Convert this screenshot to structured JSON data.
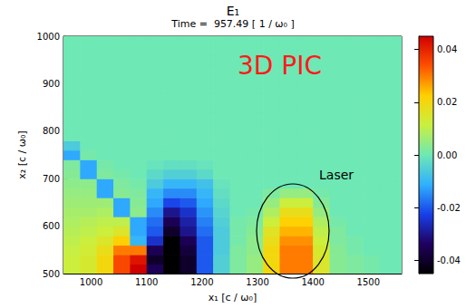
{
  "chart_data": {
    "type": "heatmap",
    "title": "E₁",
    "subtitle": "Time =  957.49 [ 1 / ω₀ ]",
    "x_label": "x₁ [c / ω₀]",
    "y_label": "x₂ [c / ω₀]",
    "xlim": [
      950,
      1560
    ],
    "ylim": [
      500,
      1000
    ],
    "xticks": [
      1000,
      1100,
      1200,
      1300,
      1400,
      1500
    ],
    "yticks": [
      500,
      600,
      700,
      800,
      900,
      1000
    ],
    "annotations": [
      "3D PIC",
      "Laser"
    ],
    "cells": {
      "x": [
        965,
        995,
        1025,
        1055,
        1085,
        1115,
        1145,
        1175,
        1205,
        1235,
        1265,
        1295,
        1325,
        1355,
        1385,
        1415,
        1445,
        1475,
        1505,
        1535,
        1565
      ],
      "y": [
        510,
        530,
        550,
        570,
        590,
        610,
        630,
        650,
        670,
        690,
        710,
        730,
        750,
        770,
        790,
        810,
        830,
        850,
        870,
        890,
        910,
        930,
        950,
        970,
        990
      ],
      "values": [
        [
          0.012,
          0.014,
          0.02,
          0.035,
          0.045,
          -0.035,
          -0.045,
          -0.04,
          -0.02,
          -0.005,
          0.002,
          0.005,
          0.02,
          0.03,
          0.03,
          0.015,
          0.003,
          0.002,
          0.001,
          0,
          0
        ],
        [
          0.012,
          0.014,
          0.02,
          0.035,
          0.042,
          -0.04,
          -0.045,
          -0.04,
          -0.02,
          -0.005,
          0.002,
          0.005,
          0.02,
          0.03,
          0.03,
          0.015,
          0.003,
          0.002,
          0.001,
          0,
          0
        ],
        [
          0.011,
          0.013,
          0.018,
          0.03,
          0.03,
          -0.035,
          -0.045,
          -0.038,
          -0.02,
          -0.006,
          0.002,
          0.004,
          0.02,
          0.03,
          0.03,
          0.014,
          0.003,
          0.001,
          0,
          0,
          0
        ],
        [
          0.01,
          0.012,
          0.015,
          0.022,
          -0.01,
          -0.025,
          -0.045,
          -0.035,
          -0.02,
          -0.006,
          0.001,
          0.004,
          0.018,
          0.028,
          0.028,
          0.012,
          0.002,
          0.001,
          0,
          0,
          0
        ],
        [
          0.009,
          0.01,
          0.012,
          0.015,
          -0.012,
          -0.02,
          -0.04,
          -0.03,
          -0.018,
          -0.006,
          0.001,
          0.003,
          0.016,
          0.025,
          0.025,
          0.01,
          0.002,
          0,
          0,
          0,
          0
        ],
        [
          0.008,
          0.009,
          0.01,
          0.01,
          -0.012,
          -0.018,
          -0.035,
          -0.028,
          -0.016,
          -0.005,
          0.001,
          0.002,
          0.012,
          0.022,
          0.022,
          0.008,
          0.001,
          0,
          0,
          0,
          0
        ],
        [
          0.007,
          0.007,
          0.008,
          -0.012,
          0.004,
          -0.015,
          -0.03,
          -0.025,
          -0.014,
          -0.004,
          0,
          0.001,
          0.008,
          0.018,
          0.018,
          0.005,
          0,
          0,
          0,
          0,
          0
        ],
        [
          0.006,
          0.006,
          0.006,
          -0.012,
          0.003,
          -0.012,
          -0.022,
          -0.02,
          -0.012,
          -0.003,
          0,
          0,
          0.005,
          0.012,
          0.012,
          0.003,
          0,
          0,
          0,
          0,
          0
        ],
        [
          0.005,
          0.005,
          -0.012,
          0.003,
          0.002,
          -0.01,
          -0.015,
          -0.015,
          -0.01,
          -0.002,
          0,
          0,
          0.002,
          0.005,
          0.005,
          0.001,
          0,
          0,
          0,
          0,
          0
        ],
        [
          0.004,
          0.004,
          -0.012,
          0.002,
          0.001,
          -0.006,
          -0.01,
          -0.01,
          -0.008,
          -0.001,
          0,
          0,
          0,
          0,
          0,
          0,
          0,
          0,
          0,
          0,
          0
        ],
        [
          0.003,
          -0.012,
          0.002,
          0.001,
          0,
          -0.003,
          -0.005,
          -0.005,
          -0.003,
          0,
          0,
          0,
          0,
          0,
          0,
          0,
          0,
          0,
          0,
          0,
          0
        ],
        [
          0.002,
          -0.012,
          0.001,
          0,
          0,
          -0.001,
          -0.002,
          -0.002,
          -0.001,
          0,
          0,
          0,
          0,
          0,
          0,
          0,
          0,
          0,
          0,
          0,
          0
        ],
        [
          -0.012,
          0.001,
          0,
          0,
          0,
          0,
          0,
          0,
          0,
          0,
          0,
          0,
          0,
          0,
          0,
          0,
          0,
          0,
          0,
          0,
          0
        ],
        [
          -0.006,
          0,
          0,
          0,
          0,
          0,
          0,
          0,
          0,
          0,
          0,
          0,
          0,
          0,
          0,
          0,
          0,
          0,
          0,
          0,
          0
        ],
        [
          0,
          0,
          0,
          0,
          0,
          0,
          0,
          0,
          0,
          0,
          0,
          0,
          0,
          0,
          0,
          0,
          0,
          0,
          0,
          0,
          0
        ],
        [
          0,
          0,
          0,
          0,
          0,
          0,
          0,
          0,
          0,
          0,
          0,
          0,
          0,
          0,
          0,
          0,
          0,
          0,
          0,
          0,
          0
        ],
        [
          0,
          0,
          0,
          0,
          0,
          0,
          0,
          0,
          0,
          0,
          0,
          0,
          0,
          0,
          0,
          0,
          0,
          0,
          0,
          0,
          0
        ],
        [
          0,
          0,
          0,
          0,
          0,
          0,
          0,
          0,
          0,
          0,
          0,
          0,
          0,
          0,
          0,
          0,
          0,
          0,
          0,
          0,
          0
        ],
        [
          0,
          0,
          0,
          0,
          0,
          0,
          0,
          0,
          0,
          0,
          0,
          0,
          0,
          0,
          0,
          0,
          0,
          0,
          0,
          0,
          0
        ],
        [
          0,
          0,
          0,
          0,
          0,
          0,
          0,
          0,
          0,
          0,
          0,
          0,
          0,
          0,
          0,
          0,
          0,
          0,
          0,
          0,
          0
        ],
        [
          0,
          0,
          0,
          0,
          0,
          0,
          0,
          0,
          0,
          0,
          0,
          0,
          0,
          0,
          0,
          0,
          0,
          0,
          0,
          0,
          0
        ],
        [
          0,
          0,
          0,
          0,
          0,
          0,
          0,
          0,
          0,
          0,
          0,
          0,
          0,
          0,
          0,
          0,
          0,
          0,
          0,
          0,
          0
        ],
        [
          0,
          0,
          0,
          0,
          0,
          0,
          0,
          0,
          0,
          0,
          0,
          0,
          0,
          0,
          0,
          0,
          0,
          0,
          0,
          0,
          0
        ],
        [
          0,
          0,
          0,
          0,
          0,
          0,
          0,
          0,
          0,
          0,
          0,
          0,
          0,
          0,
          0,
          0,
          0,
          0,
          0,
          0,
          0
        ],
        [
          0,
          0,
          0,
          0,
          0,
          0,
          0,
          0,
          0,
          0,
          0,
          0,
          0,
          0,
          0,
          0,
          0,
          0,
          0,
          0,
          0
        ]
      ]
    },
    "colorbar": {
      "range": [
        -0.045,
        0.045
      ],
      "ticks": [
        -0.04,
        -0.02,
        {
          "value": 0,
          "label": "0.00"
        },
        0.02,
        0.04
      ]
    }
  }
}
